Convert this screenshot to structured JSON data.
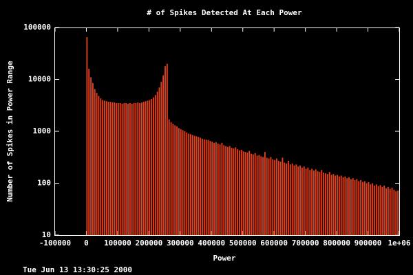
{
  "chart_data": {
    "type": "histogram",
    "title": "# of Spikes Detected At Each Power",
    "xlabel": "Power",
    "ylabel": "Number of Spikes in Power Range",
    "timestamp": "Tue Jun 13 13:30:25 2000",
    "color": "#e8401c",
    "log_y": true,
    "xlim": [
      -100000,
      1000000
    ],
    "ylim": [
      10,
      100000
    ],
    "xticks": [
      -100000,
      0,
      100000,
      200000,
      300000,
      400000,
      500000,
      600000,
      700000,
      800000,
      900000,
      {
        "value": 1000000,
        "label": "1e+06"
      }
    ],
    "yticks": [
      10,
      100,
      1000,
      10000,
      100000
    ],
    "bins": [
      0,
      6250,
      12500,
      18750,
      25000,
      31250,
      37500,
      43750,
      50000,
      56250,
      62500,
      68750,
      75000,
      81250,
      87500,
      93750,
      100000,
      106250,
      112500,
      118750,
      125000,
      131250,
      137500,
      143750,
      150000,
      156250,
      162500,
      168750,
      175000,
      181250,
      187500,
      193750,
      200000,
      206250,
      212500,
      218750,
      225000,
      231250,
      237500,
      243750,
      250000,
      256250,
      262500,
      268750,
      275000,
      281250,
      287500,
      293750,
      300000,
      306250,
      312500,
      318750,
      325000,
      331250,
      337500,
      343750,
      350000,
      356250,
      362500,
      368750,
      375000,
      381250,
      387500,
      393750,
      400000,
      406250,
      412500,
      418750,
      425000,
      431250,
      437500,
      443750,
      450000,
      456250,
      462500,
      468750,
      475000,
      481250,
      487500,
      493750,
      500000,
      506250,
      512500,
      518750,
      525000,
      531250,
      537500,
      543750,
      550000,
      556250,
      562500,
      568750,
      575000,
      581250,
      587500,
      593750,
      600000,
      606250,
      612500,
      618750,
      625000,
      631250,
      637500,
      643750,
      650000,
      656250,
      662500,
      668750,
      675000,
      681250,
      687500,
      693750,
      700000,
      706250,
      712500,
      718750,
      725000,
      731250,
      737500,
      743750,
      750000,
      756250,
      762500,
      768750,
      775000,
      781250,
      787500,
      793750,
      800000,
      806250,
      812500,
      818750,
      825000,
      831250,
      837500,
      843750,
      850000,
      856250,
      862500,
      868750,
      875000,
      881250,
      887500,
      893750,
      900000,
      906250,
      912500,
      918750,
      925000,
      931250,
      937500,
      943750,
      950000,
      956250,
      962500,
      968750,
      975000,
      981250,
      987500,
      993750,
      1000000
    ],
    "values": [
      65000,
      16000,
      11000,
      8500,
      6500,
      5500,
      4800,
      4300,
      4000,
      3900,
      3800,
      3700,
      3700,
      3600,
      3600,
      3500,
      3500,
      3500,
      3400,
      3500,
      3500,
      3400,
      3500,
      3400,
      3500,
      3500,
      3600,
      3500,
      3600,
      3700,
      3800,
      3900,
      4000,
      4200,
      4500,
      5000,
      5800,
      7000,
      9000,
      12000,
      18000,
      20000,
      1700,
      1500,
      1400,
      1300,
      1250,
      1150,
      1100,
      1050,
      1000,
      950,
      900,
      880,
      850,
      820,
      800,
      780,
      750,
      720,
      700,
      690,
      680,
      650,
      630,
      600,
      620,
      580,
      560,
      600,
      540,
      520,
      500,
      520,
      480,
      470,
      490,
      450,
      430,
      440,
      410,
      400,
      390,
      420,
      370,
      360,
      380,
      340,
      350,
      330,
      320,
      400,
      310,
      300,
      320,
      290,
      280,
      300,
      270,
      260,
      310,
      250,
      240,
      270,
      230,
      240,
      220,
      230,
      210,
      220,
      200,
      210,
      190,
      200,
      180,
      190,
      175,
      185,
      170,
      165,
      180,
      160,
      155,
      150,
      165,
      145,
      150,
      140,
      145,
      135,
      140,
      130,
      135,
      125,
      130,
      120,
      125,
      115,
      120,
      110,
      115,
      105,
      110,
      100,
      105,
      95,
      100,
      90,
      95,
      88,
      92,
      85,
      90,
      80,
      85,
      78,
      82,
      75,
      70,
      72
    ]
  }
}
